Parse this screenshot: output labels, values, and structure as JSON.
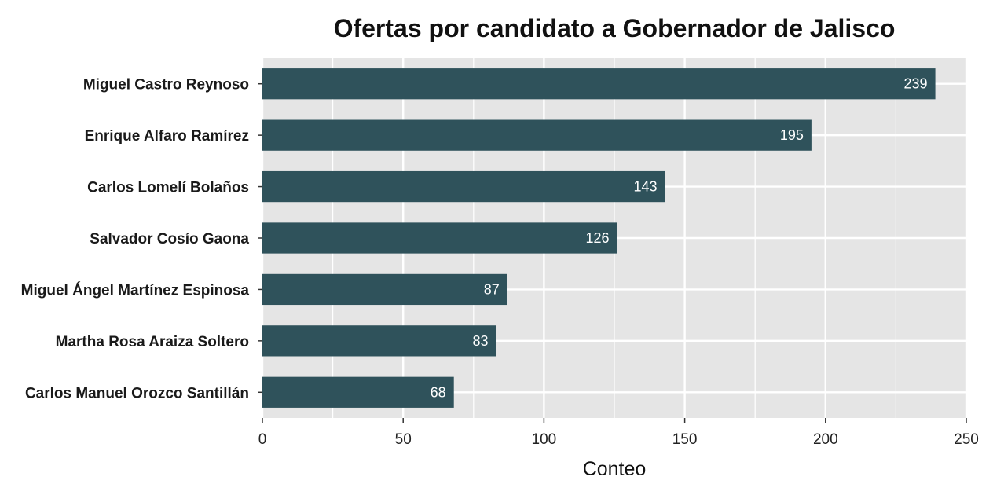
{
  "chart_data": {
    "type": "bar",
    "orientation": "horizontal",
    "title": "Ofertas por candidato a Gobernador de Jalisco",
    "xlabel": "Conteo",
    "ylabel": "",
    "categories": [
      "Miguel Castro Reynoso",
      "Enrique Alfaro Ramírez",
      "Carlos Lomelí Bolaños",
      "Salvador Cosío Gaona",
      "Miguel Ángel Martínez Espinosa",
      "Martha Rosa Araiza Soltero",
      "Carlos Manuel Orozco Santillán"
    ],
    "values": [
      239,
      195,
      143,
      126,
      87,
      83,
      68
    ],
    "xlim": [
      0,
      250
    ],
    "xticks": [
      "0",
      "50",
      "100",
      "150",
      "200",
      "250"
    ],
    "grid": true,
    "colors": {
      "bar": "#2f525b",
      "panel": "#e5e5e5",
      "grid": "#ffffff"
    }
  }
}
